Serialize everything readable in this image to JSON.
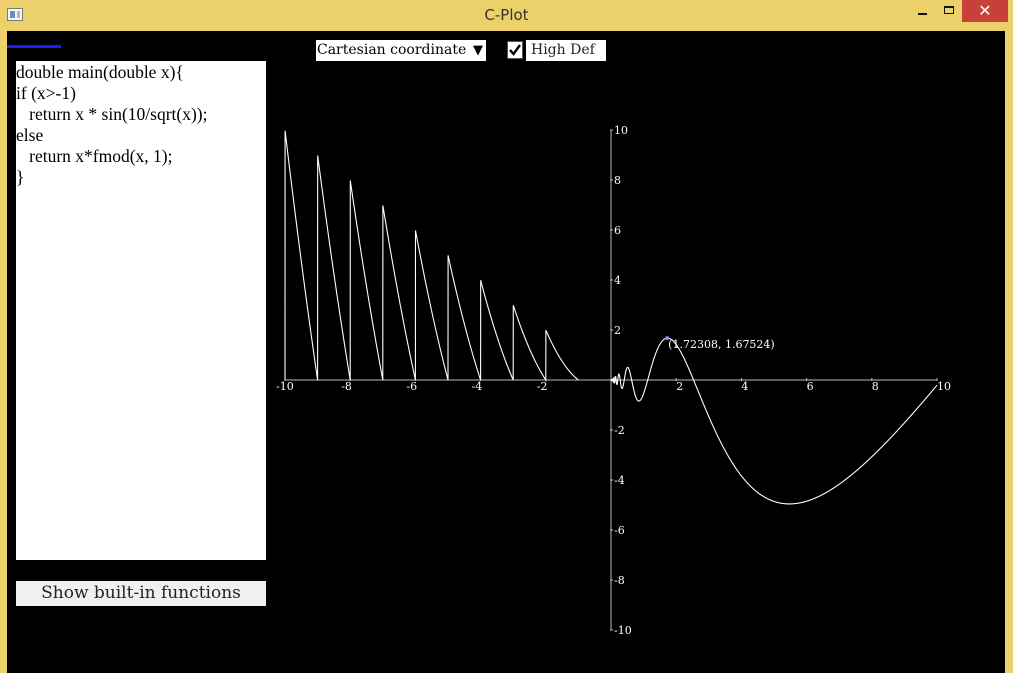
{
  "window": {
    "title": "C-Plot"
  },
  "editor": {
    "lines": [
      "double main(double x){",
      "if (x>-1)",
      "   return x * sin(10/sqrt(x));",
      "else",
      "   return x*fmod(x, 1);",
      "}"
    ]
  },
  "builtin_button": {
    "label": "Show built-in functions"
  },
  "coord_select": {
    "value": "Cartesian coordinates"
  },
  "high_def": {
    "label": "High Def",
    "checked": true
  },
  "plot": {
    "x_ticks": [
      "-10",
      "-8",
      "-6",
      "-4",
      "-2",
      "2",
      "4",
      "6",
      "8",
      "10"
    ],
    "y_ticks": [
      "10",
      "8",
      "6",
      "4",
      "2",
      "-2",
      "-4",
      "-6",
      "-8",
      "-10"
    ],
    "marker_label": "(1.72308, 1.67524)",
    "marker": {
      "x": 1.72308,
      "y": 1.67524
    }
  },
  "chart_data": {
    "type": "line",
    "function_source": "x > -1 ? x*sin(10/sqrt(x)) : x*fmod(x,1)",
    "xlim": [
      -10,
      10
    ],
    "ylim": [
      -10,
      10
    ],
    "x_ticks": [
      -10,
      -8,
      -6,
      -4,
      -2,
      2,
      4,
      6,
      8,
      10
    ],
    "y_ticks": [
      10,
      8,
      6,
      4,
      2,
      -2,
      -4,
      -6,
      -8,
      -10
    ],
    "grid": false,
    "annotation": {
      "x": 1.72308,
      "y": 1.67524,
      "text": "(1.72308, 1.67524)"
    },
    "colors": {
      "curve": "#ffffff",
      "marker": "#8888ff",
      "background": "#000000"
    }
  },
  "colors": {
    "titlebar": "#ecd16a",
    "close": "#c7413a",
    "progress": "#1b1bff"
  }
}
